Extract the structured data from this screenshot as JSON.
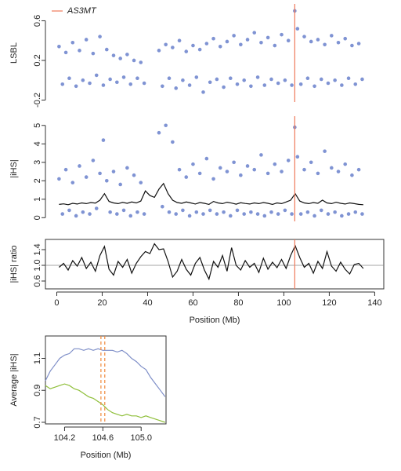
{
  "chart_data": [
    {
      "type": "scatter",
      "ylabel": "LSBL",
      "xlim": [
        -5,
        144
      ],
      "ylim": [
        -0.22,
        0.77
      ],
      "yticks": [
        -0.2,
        0.2,
        0.6
      ],
      "legend": {
        "label": "AS3MT",
        "color": "#f07a5a"
      },
      "vlines": [
        {
          "x": 104.8,
          "color": "#f07a5a"
        }
      ],
      "series": [
        {
          "color": "#7f93d3",
          "x": [
            1,
            2.5,
            4,
            5.5,
            7,
            8.5,
            10,
            11.5,
            13,
            14.5,
            16,
            17.5,
            19,
            20.5,
            22,
            23.5,
            25,
            26.5,
            28,
            29.5,
            31,
            32.5,
            34,
            35.5,
            37,
            38.5,
            45,
            46.5,
            48,
            49.5,
            51,
            52.5,
            54,
            55.5,
            57,
            58.5,
            60,
            61.5,
            63,
            64.5,
            66,
            67.5,
            69,
            70.5,
            72,
            73.5,
            75,
            76.5,
            78,
            79.5,
            81,
            82.5,
            84,
            85.5,
            87,
            88.5,
            90,
            91.5,
            93,
            94.5,
            96,
            97.5,
            99,
            100.5,
            102,
            103.5,
            104.8,
            106,
            107.5,
            109,
            110.5,
            112,
            113.5,
            115,
            116.5,
            118,
            119.5,
            121,
            122.5,
            124,
            125.5,
            127,
            128.5,
            130,
            131.5,
            133,
            134.5
          ],
          "values": [
            0.34,
            -0.04,
            0.28,
            0.02,
            0.38,
            -0.06,
            0.3,
            0.0,
            0.41,
            -0.03,
            0.27,
            0.05,
            0.44,
            -0.05,
            0.31,
            0.01,
            0.25,
            -0.02,
            0.22,
            0.03,
            0.26,
            -0.04,
            0.2,
            0.02,
            0.18,
            -0.03,
            0.3,
            -0.06,
            0.36,
            0.02,
            0.33,
            -0.08,
            0.4,
            0.0,
            0.29,
            -0.05,
            0.35,
            0.03,
            0.31,
            -0.12,
            0.37,
            -0.02,
            0.42,
            0.01,
            0.34,
            -0.07,
            0.39,
            0.02,
            0.45,
            -0.04,
            0.36,
            0.0,
            0.41,
            -0.06,
            0.48,
            0.03,
            0.38,
            -0.05,
            0.43,
            0.01,
            0.35,
            -0.03,
            0.46,
            0.0,
            0.4,
            -0.05,
            0.7,
            0.52,
            -0.04,
            0.44,
            0.02,
            0.39,
            -0.06,
            0.41,
            0.01,
            0.36,
            -0.03,
            0.45,
            0.0,
            0.38,
            -0.05,
            0.42,
            0.02,
            0.35,
            -0.04,
            0.37,
            0.01
          ]
        }
      ]
    },
    {
      "type": "scatter",
      "ylabel": "|iHS|",
      "xlim": [
        -5,
        144
      ],
      "ylim": [
        -0.2,
        5.5
      ],
      "yticks": [
        0,
        1,
        2,
        3,
        4,
        5
      ],
      "vlines": [
        {
          "x": 104.8,
          "color": "#f07a5a"
        }
      ],
      "series": [
        {
          "color": "#7f93d3",
          "x": [
            1,
            2.5,
            4,
            5.5,
            7,
            8.5,
            10,
            11.5,
            13,
            14.5,
            16,
            17.5,
            19,
            20.5,
            22,
            23.5,
            25,
            26.5,
            28,
            29.5,
            31,
            32.5,
            34,
            35.5,
            37,
            38.5,
            45,
            46.5,
            48,
            49.5,
            51,
            52.5,
            54,
            55.5,
            57,
            58.5,
            60,
            61.5,
            63,
            64.5,
            66,
            67.5,
            69,
            70.5,
            72,
            73.5,
            75,
            76.5,
            78,
            79.5,
            81,
            82.5,
            84,
            85.5,
            87,
            88.5,
            90,
            91.5,
            93,
            94.5,
            96,
            97.5,
            99,
            100.5,
            102,
            103.5,
            104.8,
            106,
            107.5,
            109,
            110.5,
            112,
            113.5,
            115,
            116.5,
            118,
            119.5,
            121,
            122.5,
            124,
            125.5,
            127,
            128.5,
            130,
            131.5,
            133,
            134.5
          ],
          "values": [
            2.1,
            0.2,
            2.6,
            0.4,
            1.9,
            0.1,
            2.8,
            0.3,
            2.2,
            0.2,
            3.1,
            0.5,
            2.4,
            4.2,
            2.0,
            0.3,
            2.5,
            0.2,
            1.8,
            0.4,
            2.7,
            0.1,
            2.3,
            0.3,
            1.9,
            0.2,
            4.6,
            0.6,
            5.0,
            0.3,
            4.1,
            0.2,
            2.6,
            0.4,
            2.2,
            0.1,
            2.9,
            0.3,
            2.4,
            0.2,
            3.2,
            0.4,
            2.1,
            0.2,
            2.7,
            0.3,
            2.5,
            0.1,
            3.0,
            0.4,
            2.3,
            0.2,
            2.8,
            0.3,
            2.6,
            0.2,
            3.4,
            0.1,
            2.4,
            0.3,
            2.9,
            0.2,
            2.5,
            0.4,
            3.1,
            0.2,
            4.9,
            3.3,
            0.2,
            2.6,
            0.3,
            3.0,
            0.1,
            2.4,
            0.4,
            3.6,
            0.2,
            2.7,
            0.3,
            2.5,
            0.1,
            2.9,
            0.2,
            2.3,
            0.3,
            2.6,
            0.2
          ]
        },
        {
          "color": "#111111",
          "mode": "line",
          "x": [
            1,
            3,
            5,
            7,
            9,
            11,
            13,
            15,
            17,
            19,
            21,
            23,
            25,
            27,
            29,
            31,
            33,
            35,
            37,
            39,
            41,
            43,
            45,
            47,
            49,
            51,
            53,
            55,
            57,
            59,
            61,
            63,
            65,
            67,
            69,
            71,
            73,
            75,
            77,
            79,
            81,
            83,
            85,
            87,
            89,
            91,
            93,
            95,
            97,
            99,
            101,
            103,
            105,
            107,
            109,
            111,
            113,
            115,
            117,
            119,
            121,
            123,
            125,
            127,
            129,
            131,
            133,
            135
          ],
          "values": [
            0.72,
            0.75,
            0.7,
            0.78,
            0.74,
            0.8,
            0.76,
            0.82,
            0.79,
            0.95,
            1.3,
            0.88,
            0.8,
            0.76,
            0.83,
            0.78,
            0.85,
            0.8,
            0.9,
            1.45,
            1.2,
            1.1,
            1.55,
            1.85,
            1.3,
            0.95,
            0.82,
            0.78,
            0.85,
            0.8,
            0.74,
            0.82,
            0.78,
            0.72,
            0.88,
            0.8,
            0.76,
            0.84,
            0.79,
            0.73,
            0.81,
            0.77,
            0.74,
            0.8,
            0.76,
            0.82,
            0.78,
            0.72,
            0.8,
            0.76,
            0.85,
            0.95,
            1.3,
            0.9,
            0.8,
            0.76,
            0.82,
            0.78,
            0.95,
            0.8,
            0.76,
            0.84,
            0.78,
            0.74,
            0.8,
            0.76,
            0.72,
            0.7
          ]
        }
      ]
    },
    {
      "type": "line",
      "ylabel": "|iHS| ratio",
      "xlabel": "Position (Mb)",
      "box": true,
      "xlim": [
        -5,
        144
      ],
      "xticks": [
        0,
        20,
        40,
        60,
        80,
        100,
        120,
        140
      ],
      "ylim": [
        0.4,
        1.66
      ],
      "yticks": [
        0.6,
        {
          "value": 1,
          "label": "1.0"
        },
        1.4
      ],
      "hline": 1,
      "vlines": [
        {
          "x": 104.8,
          "color": "#f07a5a"
        }
      ],
      "series": [
        {
          "color": "#111111",
          "x": [
            1,
            3,
            5,
            7,
            9,
            11,
            13,
            15,
            17,
            19,
            21,
            23,
            25,
            27,
            29,
            31,
            33,
            35,
            37,
            39,
            41,
            43,
            45,
            47,
            49,
            51,
            53,
            55,
            57,
            59,
            61,
            63,
            65,
            67,
            69,
            71,
            73,
            75,
            77,
            79,
            81,
            83,
            85,
            87,
            89,
            91,
            93,
            95,
            97,
            99,
            101,
            103,
            105,
            107,
            109,
            111,
            113,
            115,
            117,
            119,
            121,
            123,
            125,
            127,
            129,
            131,
            133,
            135
          ],
          "values": [
            0.95,
            1.05,
            0.88,
            1.12,
            0.98,
            1.2,
            0.92,
            1.08,
            0.85,
            1.25,
            1.48,
            0.9,
            0.75,
            1.1,
            0.95,
            1.15,
            0.8,
            1.05,
            1.22,
            1.35,
            1.3,
            1.55,
            1.4,
            1.42,
            1.1,
            0.7,
            0.85,
            1.15,
            0.9,
            0.75,
            1.05,
            1.2,
            0.88,
            0.65,
            1.1,
            0.95,
            1.25,
            0.85,
            1.45,
            1.0,
            0.88,
            1.12,
            0.95,
            1.05,
            0.82,
            1.18,
            0.9,
            1.08,
            0.94,
            1.15,
            0.92,
            1.25,
            1.5,
            1.2,
            0.95,
            1.05,
            0.8,
            1.1,
            0.92,
            1.35,
            0.98,
            0.85,
            1.08,
            0.9,
            0.78,
            1.02,
            1.05,
            0.92
          ]
        }
      ]
    },
    {
      "type": "line",
      "ylabel": "Average |iHS|",
      "xlabel": "Position (Mb)",
      "box": true,
      "xlim": [
        104.0,
        105.26
      ],
      "xticks": [
        104.2,
        104.6,
        {
          "value": 105,
          "label": "105.0"
        }
      ],
      "ylim": [
        0.69,
        1.24
      ],
      "yticks": [
        0.7,
        0.9,
        1.1
      ],
      "vlines": [
        {
          "x": 104.58,
          "color": "#f08a3c",
          "dash": true
        },
        {
          "x": 104.62,
          "color": "#f08a3c",
          "dash": true
        }
      ],
      "series": [
        {
          "color": "#7f8fc8",
          "x": [
            104.0,
            104.05,
            104.1,
            104.15,
            104.2,
            104.25,
            104.3,
            104.35,
            104.4,
            104.45,
            104.5,
            104.55,
            104.6,
            104.65,
            104.7,
            104.75,
            104.8,
            104.85,
            104.9,
            104.95,
            105.0,
            105.05,
            105.1,
            105.15,
            105.2,
            105.25
          ],
          "values": [
            0.96,
            1.02,
            1.06,
            1.1,
            1.12,
            1.13,
            1.16,
            1.16,
            1.15,
            1.16,
            1.15,
            1.16,
            1.15,
            1.15,
            1.15,
            1.14,
            1.15,
            1.13,
            1.1,
            1.08,
            1.05,
            1.03,
            0.98,
            0.94,
            0.9,
            0.86
          ]
        },
        {
          "color": "#8fbf3a",
          "x": [
            104.0,
            104.05,
            104.1,
            104.15,
            104.2,
            104.25,
            104.3,
            104.35,
            104.4,
            104.45,
            104.5,
            104.55,
            104.6,
            104.65,
            104.7,
            104.75,
            104.8,
            104.85,
            104.9,
            104.95,
            105.0,
            105.05,
            105.1,
            105.15,
            105.2,
            105.25
          ],
          "values": [
            0.93,
            0.91,
            0.92,
            0.93,
            0.94,
            0.93,
            0.91,
            0.9,
            0.88,
            0.86,
            0.85,
            0.83,
            0.81,
            0.78,
            0.76,
            0.75,
            0.74,
            0.75,
            0.74,
            0.74,
            0.73,
            0.74,
            0.73,
            0.72,
            0.71,
            0.7
          ]
        }
      ]
    }
  ]
}
